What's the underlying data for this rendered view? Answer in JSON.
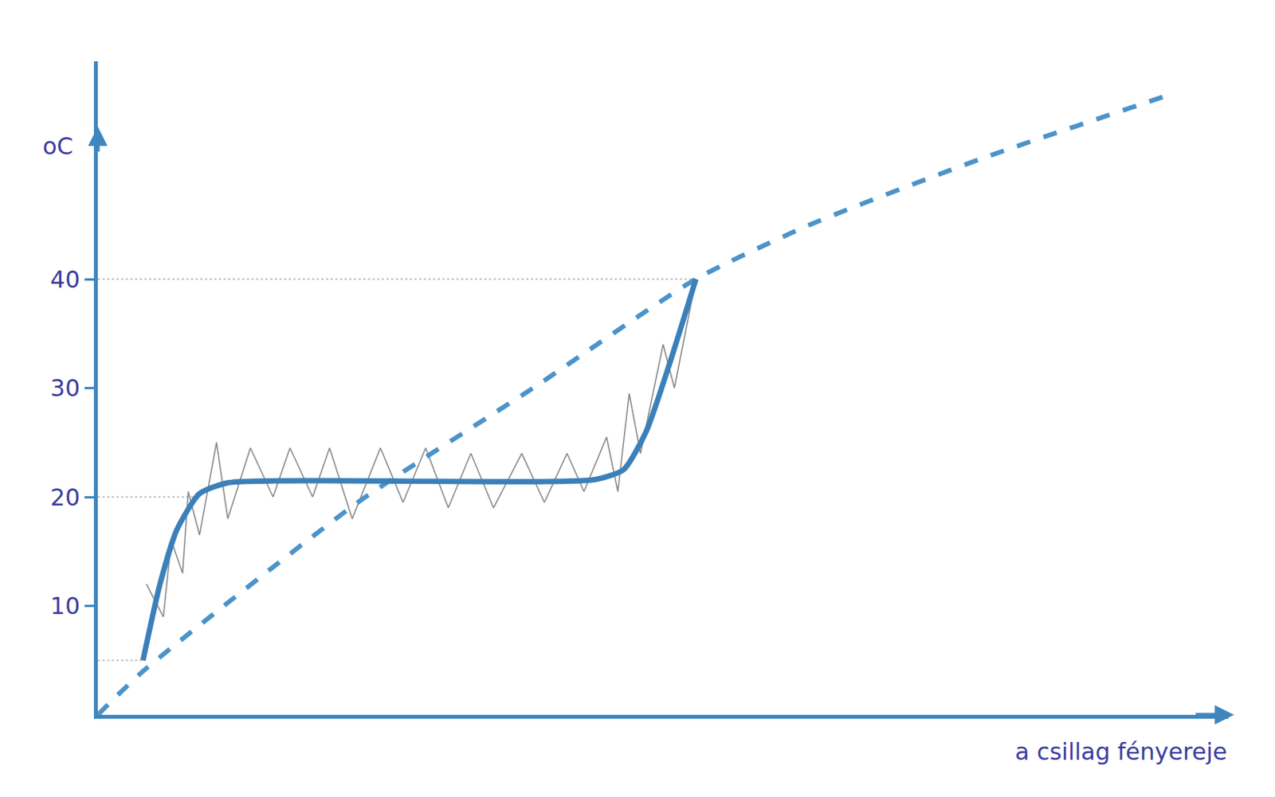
{
  "chart_data": {
    "type": "line",
    "x_label": "a csillag fényereje",
    "y_label": "oC",
    "xlim": [
      0,
      100
    ],
    "ylim": [
      0,
      60
    ],
    "yticks": [
      10,
      20,
      30,
      40
    ],
    "tick_labels": "y",
    "grid": false,
    "series": [
      {
        "color": "#3b80b9",
        "line_style": "solid",
        "x": [
          4,
          5.5,
          7,
          9,
          11.5,
          20,
          35,
          44,
          46.5,
          48.5,
          50.5,
          52.9
        ],
        "values": [
          5,
          12,
          17,
          20.3,
          21.3,
          21.5,
          21.4,
          21.6,
          22.5,
          26,
          32,
          40
        ]
      },
      {
        "color": "#4b93c9",
        "line_style": "dash",
        "x": [
          0,
          4,
          23,
          38.5,
          52.9,
          63,
          78,
          95
        ],
        "values": [
          0,
          4,
          19.5,
          30,
          40,
          45,
          51,
          57
        ]
      },
      {
        "color": "#8a8a8a",
        "line_style": "solid",
        "x": [
          4.3,
          5.8,
          6.5,
          7.5,
          8,
          9,
          10.5,
          11.5,
          13.5,
          15.5,
          17,
          19,
          20.5,
          22.5,
          25,
          27,
          29,
          31,
          33,
          35,
          37.5,
          39.5,
          41.5,
          43,
          45,
          46,
          47,
          48,
          50,
          51,
          52.9
        ],
        "values": [
          12,
          9,
          16,
          13,
          20.5,
          16.5,
          25,
          18,
          24.5,
          20,
          24.5,
          20,
          24.5,
          18,
          24.5,
          19.5,
          24.5,
          19,
          24,
          19,
          24,
          19.5,
          24,
          20.5,
          25.5,
          20.5,
          29.5,
          24,
          34,
          30,
          40
        ]
      }
    ],
    "guide_lines": [
      {
        "y": 40,
        "x_end": 52.9
      },
      {
        "y": 20,
        "x_end": 9
      },
      {
        "y": 5,
        "x_end": 4
      }
    ]
  }
}
